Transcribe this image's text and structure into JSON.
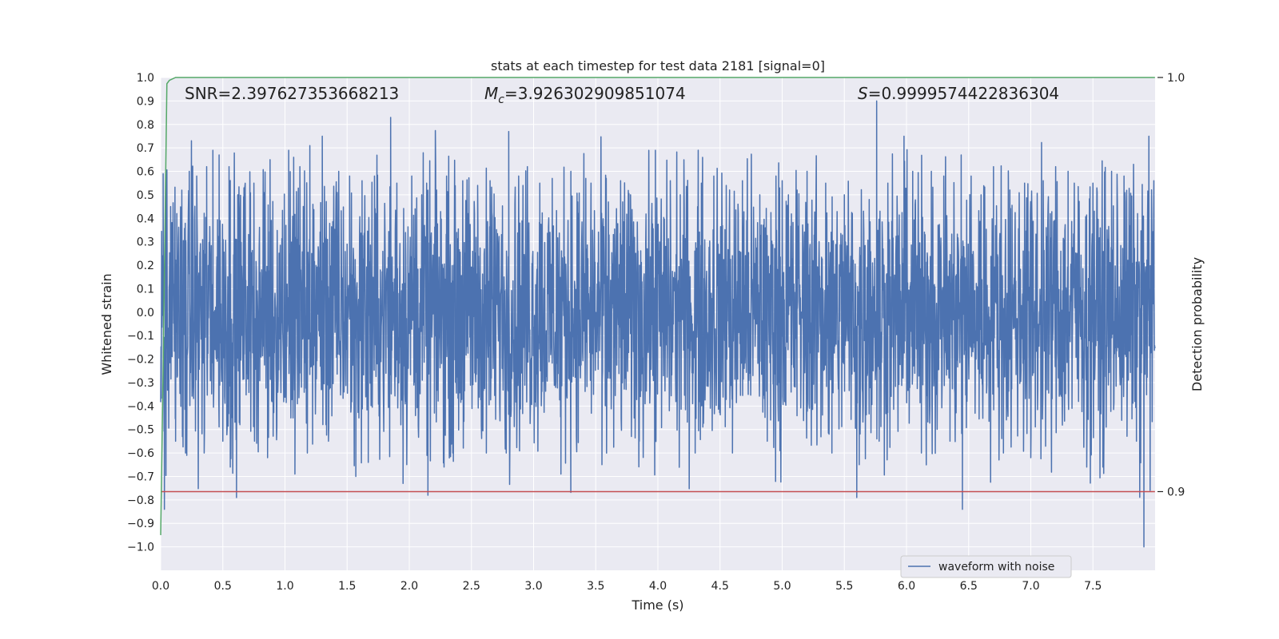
{
  "chart_data": {
    "type": "line",
    "title": "stats at each timestep for test data 2181 [signal=0]",
    "xlabel": "Time (s)",
    "ylabel": "Whitened strain",
    "y2label": "Detection probability",
    "xlim": [
      0.0,
      8.0
    ],
    "ylim": [
      -1.1,
      1.0
    ],
    "y2lim": [
      0.881,
      1.0
    ],
    "xticks": [
      0.0,
      0.5,
      1.0,
      1.5,
      2.0,
      2.5,
      3.0,
      3.5,
      4.0,
      4.5,
      5.0,
      5.5,
      6.0,
      6.5,
      7.0,
      7.5
    ],
    "xtick_labels": [
      "0.0",
      "0.5",
      "1.0",
      "1.5",
      "2.0",
      "2.5",
      "3.0",
      "3.5",
      "4.0",
      "4.5",
      "5.0",
      "5.5",
      "6.0",
      "6.5",
      "7.0",
      "7.5"
    ],
    "yticks": [
      1.0,
      0.9,
      0.8,
      0.7,
      0.6,
      0.5,
      0.4,
      0.3,
      0.2,
      0.1,
      0.0,
      -0.1,
      -0.2,
      -0.3,
      -0.4,
      -0.5,
      -0.6,
      -0.7,
      -0.8,
      -0.9,
      -1.0
    ],
    "ytick_labels": [
      "1.0",
      "0.9",
      "0.8",
      "0.7",
      "0.6",
      "0.5",
      "0.4",
      "0.3",
      "0.2",
      "0.1",
      "0.0",
      "−0.1",
      "−0.2",
      "−0.3",
      "−0.4",
      "−0.5",
      "−0.6",
      "−0.7",
      "−0.8",
      "−0.9",
      "−1.0"
    ],
    "y2ticks": [
      1.0,
      0.9
    ],
    "y2tick_labels": [
      "1.0",
      "0.9"
    ],
    "grid": true,
    "legend_position": "bottom-right",
    "legend": [
      "waveform with noise"
    ],
    "annotations": {
      "snr": "SNR=2.397627353668213",
      "mc_symbol": "M",
      "mc_sub": "c",
      "mc_value": "=3.926302909851074",
      "s_symbol": "S",
      "s_value": "=0.9999574422836304"
    },
    "series": [
      {
        "name": "waveform with noise",
        "axis": "left",
        "color": "#4c72b0",
        "noise_band": 0.28,
        "x_range": [
          0.0,
          7.999
        ],
        "peaks": [
          [
            0.02,
            0.59
          ],
          [
            0.03,
            -0.84
          ],
          [
            0.08,
            0.45
          ],
          [
            0.12,
            -0.55
          ],
          [
            0.13,
            0.42
          ],
          [
            0.17,
            0.52
          ],
          [
            0.2,
            -0.6
          ],
          [
            0.23,
            0.6
          ],
          [
            0.29,
            0.58
          ],
          [
            0.35,
            -0.6
          ],
          [
            0.37,
            0.62
          ],
          [
            0.42,
            0.69
          ],
          [
            0.47,
            0.67
          ],
          [
            0.5,
            -0.55
          ],
          [
            0.55,
            0.62
          ],
          [
            0.56,
            -0.66
          ],
          [
            0.61,
            -0.79
          ],
          [
            0.62,
            0.5
          ],
          [
            0.67,
            0.53
          ],
          [
            0.75,
            0.55
          ],
          [
            0.83,
            0.51
          ],
          [
            0.86,
            -0.62
          ],
          [
            0.88,
            0.65
          ],
          [
            1.03,
            0.69
          ],
          [
            1.07,
            0.66
          ],
          [
            1.08,
            -0.69
          ],
          [
            1.12,
            0.62
          ],
          [
            1.18,
            -0.6
          ],
          [
            1.2,
            0.71
          ],
          [
            1.3,
            0.75
          ],
          [
            1.35,
            -0.55
          ],
          [
            1.42,
            0.51
          ],
          [
            1.52,
            0.58
          ],
          [
            1.57,
            -0.7
          ],
          [
            1.62,
            0.56
          ],
          [
            1.67,
            -0.64
          ],
          [
            1.72,
            0.58
          ],
          [
            1.85,
            0.83
          ],
          [
            1.9,
            0.55
          ],
          [
            1.95,
            -0.73
          ],
          [
            2.02,
            0.58
          ],
          [
            2.1,
            0.5
          ],
          [
            2.15,
            -0.78
          ],
          [
            2.22,
            0.52
          ],
          [
            2.3,
            0.58
          ],
          [
            2.35,
            -0.6
          ],
          [
            2.43,
            0.56
          ],
          [
            2.55,
            0.54
          ],
          [
            2.62,
            -0.6
          ],
          [
            2.65,
            0.56
          ],
          [
            2.78,
            -0.6
          ],
          [
            2.8,
            0.77
          ],
          [
            2.88,
            0.58
          ],
          [
            2.95,
            0.62
          ],
          [
            3.05,
            0.55
          ],
          [
            3.15,
            0.57
          ],
          [
            3.22,
            -0.69
          ],
          [
            3.3,
            0.6
          ],
          [
            3.42,
            0.57
          ],
          [
            3.55,
            -0.65
          ],
          [
            3.58,
            0.58
          ],
          [
            3.7,
            0.56
          ],
          [
            3.78,
            0.5
          ],
          [
            3.85,
            -0.55
          ],
          [
            3.98,
            0.69
          ],
          [
            4.1,
            0.56
          ],
          [
            4.18,
            0.5
          ],
          [
            4.3,
            -0.6
          ],
          [
            4.35,
            0.55
          ],
          [
            4.45,
            0.58
          ],
          [
            4.55,
            0.54
          ],
          [
            4.6,
            -0.6
          ],
          [
            4.68,
            0.56
          ],
          [
            4.82,
            0.5
          ],
          [
            4.88,
            -0.55
          ],
          [
            4.95,
            0.58
          ],
          [
            5.0,
            0.56
          ],
          [
            5.05,
            0.5
          ],
          [
            5.12,
            0.52
          ],
          [
            5.2,
            0.6
          ],
          [
            5.28,
            -0.55
          ],
          [
            5.35,
            0.55
          ],
          [
            5.4,
            -0.6
          ],
          [
            5.5,
            0.5
          ],
          [
            5.6,
            -0.79
          ],
          [
            5.62,
            -0.65
          ],
          [
            5.7,
            0.48
          ],
          [
            5.76,
            0.9
          ],
          [
            5.78,
            -0.55
          ],
          [
            5.85,
            0.55
          ],
          [
            5.98,
            0.75
          ],
          [
            6.05,
            0.6
          ],
          [
            6.12,
            -0.6
          ],
          [
            6.2,
            0.6
          ],
          [
            6.3,
            0.58
          ],
          [
            6.35,
            -0.55
          ],
          [
            6.44,
            0.67
          ],
          [
            6.45,
            -0.84
          ],
          [
            6.52,
            0.58
          ],
          [
            6.6,
            0.5
          ],
          [
            6.7,
            0.62
          ],
          [
            6.78,
            -0.6
          ],
          [
            6.82,
            0.56
          ],
          [
            6.95,
            0.55
          ],
          [
            7.0,
            -0.62
          ],
          [
            7.1,
            0.56
          ],
          [
            7.2,
            0.62
          ],
          [
            7.3,
            0.6
          ],
          [
            7.35,
            0.55
          ],
          [
            7.45,
            -0.66
          ],
          [
            7.5,
            0.55
          ],
          [
            7.58,
            -0.66
          ],
          [
            7.65,
            0.6
          ],
          [
            7.75,
            0.58
          ],
          [
            7.85,
            -0.55
          ],
          [
            7.91,
            -1.0
          ],
          [
            7.95,
            0.75
          ],
          [
            7.96,
            -0.76
          ],
          [
            7.99,
            0.56
          ]
        ]
      },
      {
        "name": "",
        "axis": "right",
        "color": "#55a868",
        "x": [
          0.0,
          0.02,
          0.05,
          0.07,
          0.12,
          7.999
        ],
        "y": [
          0.8895,
          0.93,
          0.9985,
          0.9993,
          1.0,
          1.0
        ]
      },
      {
        "name": "",
        "axis": "right",
        "color": "#c44e52",
        "x": [
          0.0,
          7.999
        ],
        "y": [
          0.9,
          0.9
        ]
      }
    ]
  }
}
